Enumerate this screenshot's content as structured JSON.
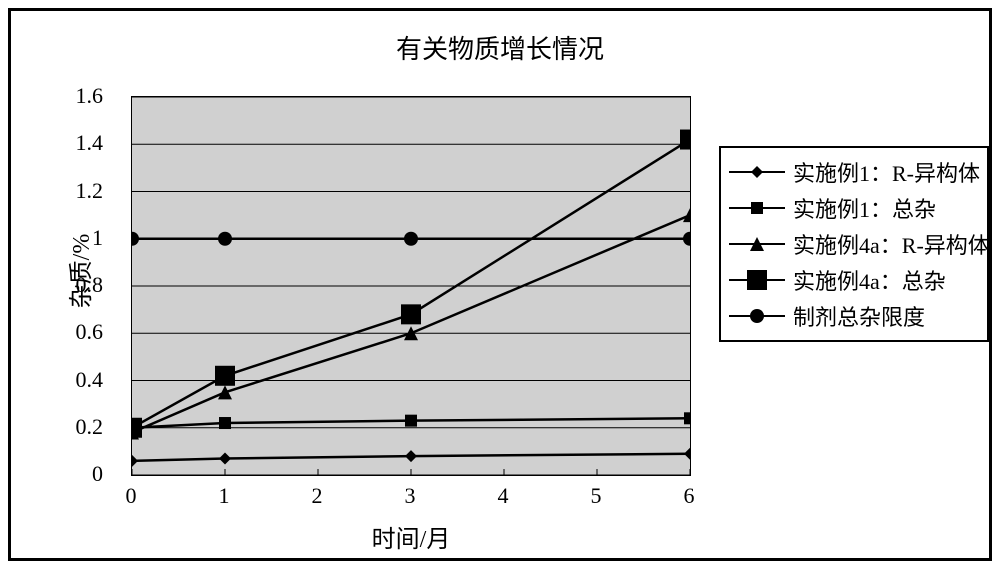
{
  "title": "有关物质增长情况",
  "x_label": "时间/月",
  "y_label": "杂质/%",
  "plot": {
    "x_min": 0,
    "x_max": 6,
    "y_min": 0,
    "y_max": 1.6,
    "x_ticks": [
      0,
      1,
      2,
      3,
      4,
      5,
      6
    ],
    "y_ticks": [
      0,
      0.2,
      0.4,
      0.6,
      0.8,
      1,
      1.2,
      1.4,
      1.6
    ],
    "grid_color": "#000000",
    "plot_bg": "#d0d0d0",
    "line_color": "#000000",
    "line_width": 2.5
  },
  "series": [
    {
      "id": "s1",
      "label": "实施例1：R-异构体",
      "marker": "diamond",
      "marker_size": 12,
      "x": [
        0,
        1,
        3,
        6
      ],
      "y": [
        0.06,
        0.07,
        0.08,
        0.09
      ]
    },
    {
      "id": "s2",
      "label": "实施例1：总杂",
      "marker": "square-small",
      "marker_size": 12,
      "x": [
        0,
        1,
        3,
        6
      ],
      "y": [
        0.2,
        0.22,
        0.23,
        0.24
      ]
    },
    {
      "id": "s3",
      "label": "实施例4a：R-异构体",
      "marker": "triangle",
      "marker_size": 14,
      "x": [
        0,
        1,
        3,
        6
      ],
      "y": [
        0.18,
        0.35,
        0.6,
        1.1
      ]
    },
    {
      "id": "s4",
      "label": "实施例4a：总杂",
      "marker": "square-large",
      "marker_size": 20,
      "x": [
        0,
        1,
        3,
        6
      ],
      "y": [
        0.2,
        0.42,
        0.68,
        1.42
      ]
    },
    {
      "id": "s5",
      "label": "制剂总杂限度",
      "marker": "circle",
      "marker_size": 14,
      "x": [
        0,
        1,
        3,
        6
      ],
      "y": [
        1.0,
        1.0,
        1.0,
        1.0
      ]
    }
  ]
}
